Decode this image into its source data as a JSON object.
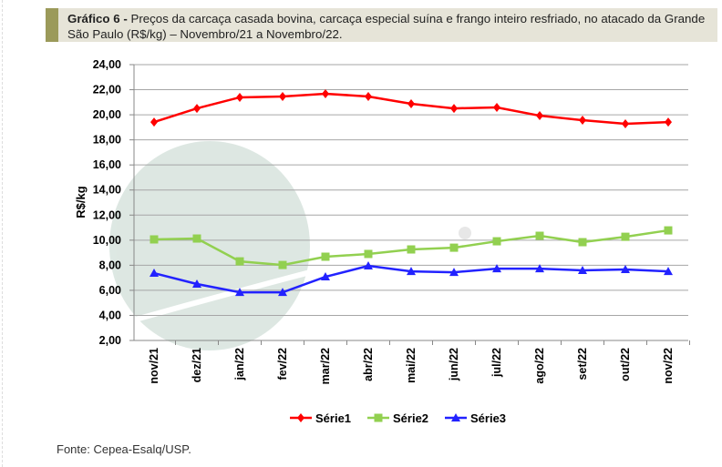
{
  "caption": {
    "label": "Gráfico 6 -",
    "text": " Preços da carcaça casada bovina, carcaça especial suína e frango inteiro resfriado, no atacado da Grande São Paulo (R$/kg) – Novembro/21 a Novembro/22."
  },
  "source": "Fonte: Cepea-Esalq/USP.",
  "chart_data": {
    "type": "line",
    "ylabel": "R$/kg",
    "ylim": [
      2,
      24
    ],
    "yticks": [
      "2,00",
      "4,00",
      "6,00",
      "8,00",
      "10,00",
      "12,00",
      "14,00",
      "16,00",
      "18,00",
      "20,00",
      "22,00",
      "24,00"
    ],
    "grid": true,
    "legend_position": "bottom",
    "categories": [
      "nov/21",
      "dez/21",
      "jan/22",
      "fev/22",
      "mar/22",
      "abr/22",
      "mai/22",
      "jun/22",
      "jul/22",
      "ago/22",
      "set/22",
      "out/22",
      "nov/22"
    ],
    "series": [
      {
        "name": "Série1",
        "color": "#ff0000",
        "marker": "diamond",
        "values": [
          19.42,
          20.51,
          21.39,
          21.46,
          21.68,
          21.46,
          20.88,
          20.51,
          20.59,
          19.93,
          19.57,
          19.28,
          19.42
        ]
      },
      {
        "name": "Série2",
        "color": "#92d050",
        "marker": "square",
        "values": [
          10.06,
          10.13,
          8.31,
          8.02,
          8.68,
          8.9,
          9.26,
          9.4,
          9.91,
          10.35,
          9.84,
          10.27,
          10.78
        ]
      },
      {
        "name": "Série3",
        "color": "#2222ff",
        "marker": "triangle",
        "values": [
          7.37,
          6.5,
          5.84,
          5.84,
          7.08,
          7.95,
          7.51,
          7.44,
          7.73,
          7.73,
          7.59,
          7.66,
          7.51
        ]
      }
    ]
  }
}
